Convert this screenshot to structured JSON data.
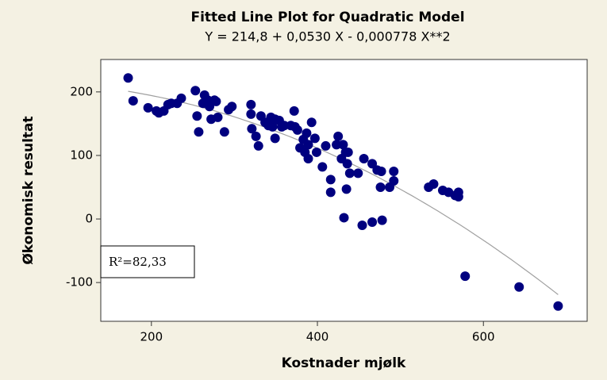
{
  "chart_data": {
    "type": "scatter",
    "title": "Fitted Line Plot for Quadratic Model",
    "subtitle": "Y =  214,8 + 0,0530 X - 0,000778 X**2",
    "x_label": "Kostnader mjølk",
    "y_label": "Økonomisk resultat",
    "annotation": "R²=82,33",
    "fit": {
      "coefficients": [
        214.8,
        0.053,
        -0.000778
      ],
      "color": "#a0a0a0"
    },
    "color": "#00007f",
    "xlim": [
      139,
      725
    ],
    "xticks": [
      200,
      400,
      600
    ],
    "ylim": [
      -161,
      251
    ],
    "yticks": [
      -100,
      0,
      100,
      200
    ],
    "x": [
      172,
      178,
      196,
      206,
      209,
      215,
      220,
      224,
      231,
      236,
      253,
      255,
      257,
      264,
      262,
      268,
      270,
      276,
      278,
      272,
      280,
      288,
      293,
      297,
      320,
      320,
      321,
      326,
      329,
      332,
      337,
      341,
      344,
      346,
      349,
      349,
      354,
      357,
      360,
      368,
      372,
      373,
      376,
      379,
      383,
      385,
      387,
      389,
      389,
      393,
      397,
      399,
      410,
      406,
      416,
      416,
      423,
      425,
      429,
      431,
      434,
      436,
      432,
      435,
      439,
      437,
      449,
      456,
      454,
      466,
      466,
      472,
      476,
      477,
      478,
      487,
      492,
      492,
      534,
      540,
      551,
      558,
      566,
      570,
      570,
      578,
      643,
      690
    ],
    "values": [
      222,
      186,
      175,
      170,
      167,
      170,
      180,
      182,
      182,
      190,
      202,
      162,
      137,
      195,
      182,
      187,
      177,
      187,
      185,
      157,
      160,
      137,
      172,
      177,
      180,
      165,
      142,
      130,
      115,
      162,
      152,
      147,
      160,
      145,
      157,
      127,
      155,
      145,
      147,
      147,
      170,
      145,
      140,
      112,
      125,
      105,
      135,
      117,
      95,
      152,
      127,
      105,
      115,
      82,
      62,
      42,
      117,
      130,
      95,
      117,
      105,
      87,
      2,
      47,
      72,
      105,
      72,
      95,
      -10,
      -5,
      87,
      77,
      50,
      75,
      -2,
      50,
      75,
      60,
      50,
      55,
      45,
      42,
      37,
      35,
      42,
      -90,
      -107,
      -137
    ]
  }
}
